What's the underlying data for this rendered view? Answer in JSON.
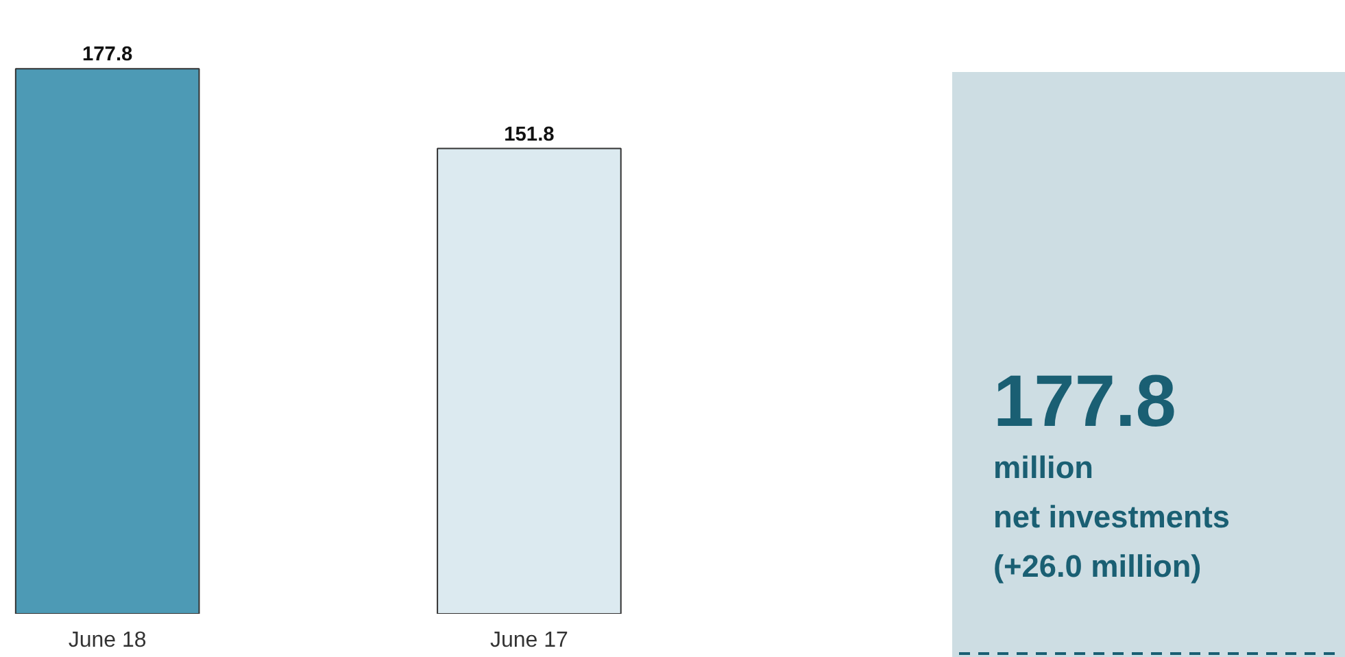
{
  "chart_data": [
    {
      "type": "bar",
      "categories": [
        "June 18",
        "June 17"
      ],
      "values": [
        177.8,
        151.8
      ],
      "colors": [
        "#4d9ab5",
        "#dceaf0"
      ],
      "data_labels": true,
      "grid": false
    },
    {
      "type": "other",
      "title": "177.8",
      "annotations": [
        "million",
        "net investments",
        "(+26.0 million)"
      ]
    }
  ]
}
